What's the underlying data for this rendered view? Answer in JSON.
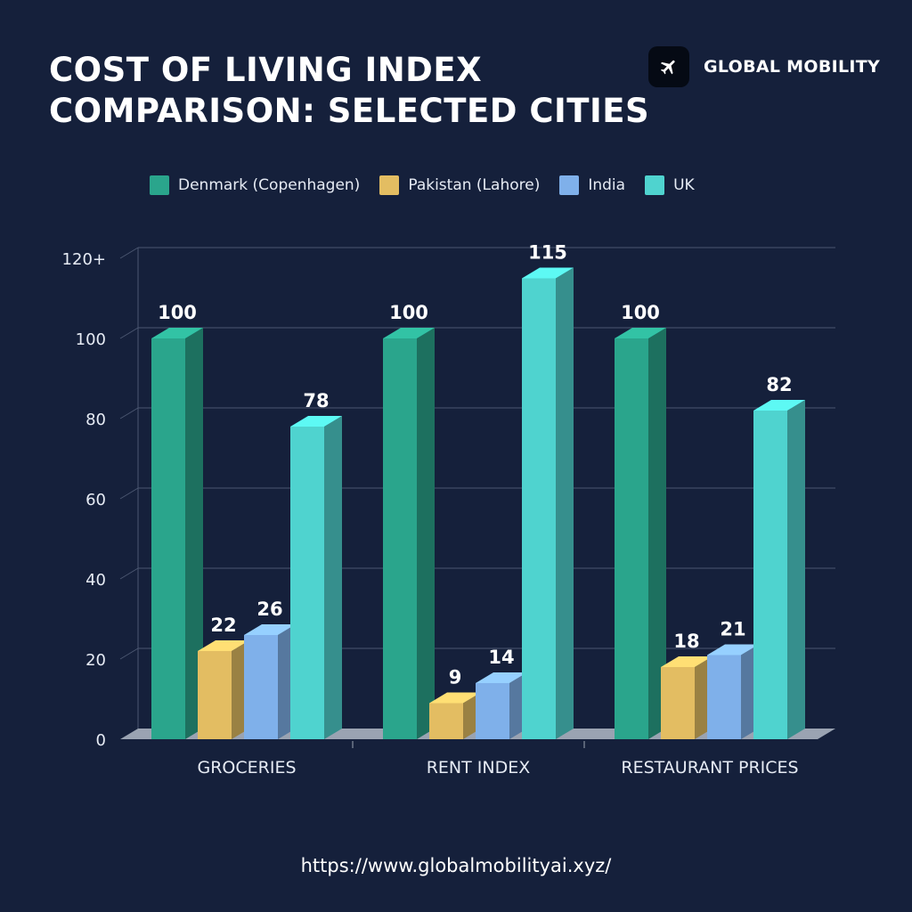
{
  "header": {
    "title_line1": "COST OF LIVING INDEX",
    "title_line2": "COMPARISON: SELECTED CITIES",
    "brand_name": "GLOBAL MOBILITY",
    "brand_icon": "airplane-icon"
  },
  "footer": {
    "url": "https://www.globalmobilityai.xyz/"
  },
  "colors": {
    "background": "#15203b",
    "denmark": "#2aa58c",
    "pakistan": "#e3bd62",
    "india": "#7fb0ea",
    "uk": "#4fd3cf",
    "grid": "#4a5670"
  },
  "chart_data": {
    "type": "bar",
    "title": "COST OF LIVING INDEX COMPARISON: SELECTED CITIES",
    "categories": [
      "GROCERIES",
      "RENT INDEX",
      "RESTAURANT PRICES"
    ],
    "series": [
      {
        "name": "Denmark (Copenhagen)",
        "values": [
          100,
          100,
          100
        ],
        "color": "#2aa58c"
      },
      {
        "name": "Pakistan (Lahore)",
        "values": [
          22,
          9,
          18
        ],
        "color": "#e3bd62"
      },
      {
        "name": "India",
        "values": [
          26,
          14,
          21
        ],
        "color": "#7fb0ea"
      },
      {
        "name": "UK",
        "values": [
          78,
          115,
          82
        ],
        "color": "#4fd3cf"
      }
    ],
    "yticks": [
      "0",
      "20",
      "40",
      "60",
      "80",
      "100",
      "120+"
    ],
    "ylim": [
      0,
      120
    ],
    "xlabel": "",
    "ylabel": "",
    "grid": true,
    "legend": "top"
  }
}
